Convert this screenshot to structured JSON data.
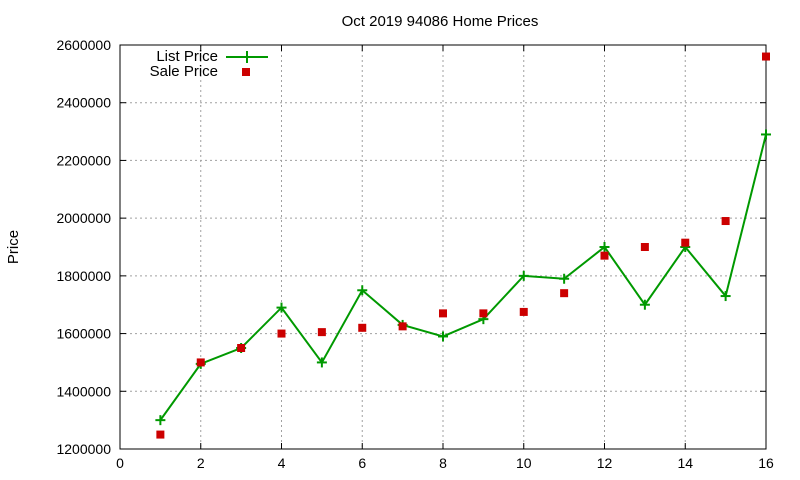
{
  "chart_data": {
    "type": "line",
    "title": "Oct 2019 94086 Home Prices",
    "xlabel": "",
    "ylabel": "Price",
    "xlim": [
      0,
      16
    ],
    "ylim": [
      1200000,
      2600000
    ],
    "x_ticks": [
      "0",
      "2",
      "4",
      "6",
      "8",
      "10",
      "12",
      "14",
      "16"
    ],
    "y_ticks": [
      "1200000",
      "1400000",
      "1600000",
      "1800000",
      "2000000",
      "2200000",
      "2400000",
      "2600000"
    ],
    "grid": true,
    "legend_position": "top-left",
    "series": [
      {
        "name": "List Price",
        "style": "linespoints",
        "color": "#009900",
        "x": [
          1,
          2,
          3,
          4,
          5,
          6,
          7,
          8,
          9,
          10,
          11,
          12,
          13,
          14,
          15,
          16
        ],
        "y": [
          1300000,
          1495000,
          1550000,
          1690000,
          1500000,
          1750000,
          1630000,
          1590000,
          1650000,
          1800000,
          1790000,
          1900000,
          1700000,
          1900000,
          1730000,
          2290000
        ]
      },
      {
        "name": "Sale Price",
        "style": "points",
        "color": "#cc0000",
        "x": [
          1,
          2,
          3,
          4,
          5,
          6,
          7,
          8,
          9,
          10,
          11,
          12,
          13,
          14,
          15,
          16
        ],
        "y": [
          1250000,
          1500000,
          1550000,
          1600000,
          1605000,
          1620000,
          1625000,
          1670000,
          1670000,
          1675000,
          1740000,
          1870000,
          1900000,
          1915000,
          1990000,
          2560000
        ]
      }
    ]
  }
}
